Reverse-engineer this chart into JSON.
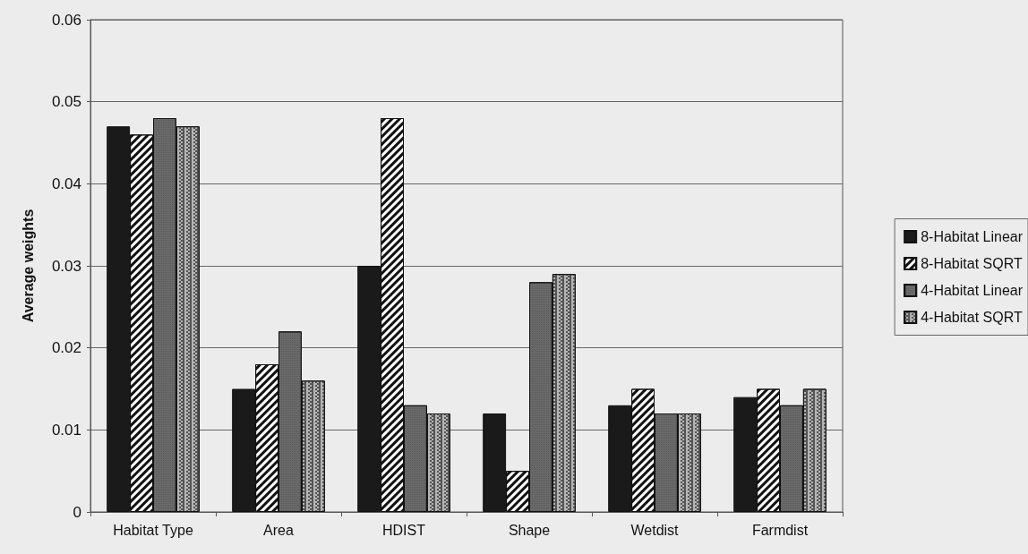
{
  "chart_data": {
    "type": "bar",
    "ylabel": "Average weights",
    "categories": [
      "Habitat Type",
      "Area",
      "HDIST",
      "Shape",
      "Wetdist",
      "Farmdist"
    ],
    "series": [
      {
        "name": "8-Habitat Linear",
        "color": "#1a1a1a",
        "values": [
          0.047,
          0.015,
          0.03,
          0.012,
          0.013,
          0.014
        ]
      },
      {
        "name": "8-Habitat SQRT",
        "color": "#ffffff",
        "values": [
          0.046,
          0.018,
          0.048,
          0.005,
          0.015,
          0.015
        ]
      },
      {
        "name": "4-Habitat Linear",
        "color": "#6a6a6a",
        "values": [
          0.048,
          0.022,
          0.013,
          0.028,
          0.012,
          0.013
        ]
      },
      {
        "name": "4-Habitat SQRT",
        "color": "#b4b4b4",
        "values": [
          0.047,
          0.016,
          0.012,
          0.029,
          0.012,
          0.015
        ]
      }
    ],
    "ylim": [
      0,
      0.06
    ],
    "yticks": [
      0,
      0.01,
      0.02,
      0.03,
      0.04,
      0.05,
      0.06
    ],
    "grid": "y",
    "legend": "right"
  }
}
